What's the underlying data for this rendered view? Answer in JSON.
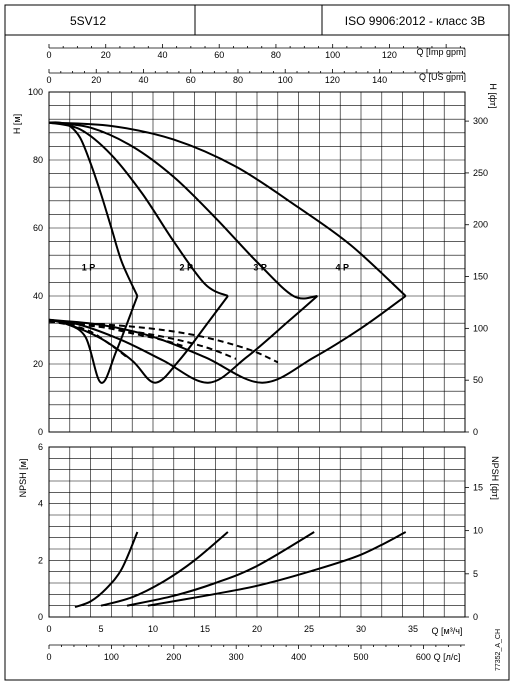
{
  "header": {
    "model": "5SV12",
    "standard": "ISO 9906:2012 - класс 3B"
  },
  "chart_data": [
    {
      "type": "line",
      "name": "head_curves",
      "xlabel_top_imp": "Q [Imp gpm]",
      "xlabel_top_us": "Q [US gpm]",
      "ylabel_left": "H [м]",
      "ylabel_right": "H [фт]",
      "xlim": [
        0,
        40
      ],
      "ylim": [
        0,
        100
      ],
      "x_imp_ticks": [
        0,
        20,
        40,
        60,
        80,
        100,
        120
      ],
      "x_us_ticks": [
        0,
        20,
        40,
        60,
        80,
        100,
        120,
        140
      ],
      "y_ticks": [
        0,
        20,
        40,
        60,
        80,
        100
      ],
      "y_ft_ticks": [
        0,
        50,
        100,
        150,
        200,
        250,
        300
      ],
      "grid": true,
      "series": [
        {
          "name": "1 P",
          "label_at": [
            3.8,
            47.5
          ],
          "head": [
            [
              0,
              91
            ],
            [
              1,
              91
            ],
            [
              2,
              90
            ],
            [
              3,
              86.5
            ],
            [
              4,
              79
            ],
            [
              5,
              70
            ],
            [
              6,
              60
            ],
            [
              7,
              50
            ],
            [
              8.5,
              40
            ]
          ],
          "shape": [
            [
              0,
              33
            ],
            [
              1.5,
              32
            ],
            [
              3.5,
              28
            ],
            [
              5,
              14.5
            ],
            [
              6.5,
              24
            ],
            [
              8.5,
              40
            ]
          ],
          "npsh_q": [
            [
              0,
              32.5
            ],
            [
              2,
              31.5
            ],
            [
              4,
              29.5
            ],
            [
              6,
              25.5
            ],
            [
              7.5,
              22
            ]
          ]
        },
        {
          "name": "2 P",
          "label_at": [
            13.2,
            47.5
          ],
          "head": [
            [
              0,
              91
            ],
            [
              3,
              89
            ],
            [
              6,
              81.5
            ],
            [
              9,
              70
            ],
            [
              12,
              56
            ],
            [
              15,
              43.5
            ],
            [
              17.2,
              40
            ]
          ],
          "shape": [
            [
              0,
              33
            ],
            [
              2,
              31.5
            ],
            [
              5,
              27.5
            ],
            [
              8,
              21
            ],
            [
              10.2,
              14.5
            ],
            [
              12.5,
              21
            ],
            [
              15,
              31
            ],
            [
              17.2,
              40
            ]
          ],
          "npsh_q": [
            [
              0,
              32.5
            ],
            [
              4,
              31.5
            ],
            [
              8,
              29
            ],
            [
              11,
              27
            ],
            [
              13.2,
              25
            ]
          ]
        },
        {
          "name": "3 P",
          "label_at": [
            20.3,
            47.5
          ],
          "head": [
            [
              0,
              91
            ],
            [
              4,
              89.5
            ],
            [
              8,
              84
            ],
            [
              12,
              75
            ],
            [
              16,
              63
            ],
            [
              20,
              50
            ],
            [
              23.5,
              40
            ],
            [
              25.8,
              40
            ]
          ],
          "shape": [
            [
              0,
              33
            ],
            [
              3,
              31.5
            ],
            [
              7,
              27
            ],
            [
              11,
              21
            ],
            [
              15.3,
              14.5
            ],
            [
              19,
              22
            ],
            [
              23,
              32.5
            ],
            [
              25.8,
              40
            ]
          ],
          "npsh_q": [
            [
              0,
              32.5
            ],
            [
              6,
              30.5
            ],
            [
              11,
              28
            ],
            [
              15,
              25
            ],
            [
              18,
              21.5
            ]
          ]
        },
        {
          "name": "4 P",
          "label_at": [
            28.2,
            47.5
          ],
          "head": [
            [
              0,
              91
            ],
            [
              6,
              90
            ],
            [
              12,
              86
            ],
            [
              18,
              78
            ],
            [
              24,
              66
            ],
            [
              29,
              55
            ],
            [
              34.3,
              40
            ]
          ],
          "shape": [
            [
              0,
              33
            ],
            [
              5,
              31.5
            ],
            [
              10,
              28
            ],
            [
              15,
              22
            ],
            [
              20.5,
              14.5
            ],
            [
              25.5,
              22
            ],
            [
              30,
              30.5
            ],
            [
              34.3,
              40
            ]
          ],
          "npsh_q": [
            [
              0,
              32.5
            ],
            [
              8,
              31
            ],
            [
              14,
              28.5
            ],
            [
              19,
              24.5
            ],
            [
              22,
              20.5
            ]
          ]
        }
      ]
    },
    {
      "type": "line",
      "name": "npsh_curves",
      "ylabel_left": "NPSH [м]",
      "ylabel_right": "NPSH [фт]",
      "xlabel_bottom_m3h": "Q [м³/ч]",
      "xlabel_bottom_lmin": "Q [л/с]",
      "xlim": [
        0,
        40
      ],
      "ylim": [
        0,
        6
      ],
      "x_ticks": [
        0,
        5,
        10,
        15,
        20,
        25,
        30,
        35
      ],
      "x_lmin_ticks": [
        0,
        100,
        200,
        300,
        400,
        500,
        600
      ],
      "y_ticks": [
        0,
        2,
        4,
        6
      ],
      "y_ft_ticks": [
        0,
        5,
        10,
        15
      ],
      "grid": true,
      "series": [
        {
          "name": "1 P",
          "points": [
            [
              2.5,
              0.35
            ],
            [
              4,
              0.55
            ],
            [
              5.5,
              1.0
            ],
            [
              7,
              1.7
            ],
            [
              8.5,
              3.0
            ]
          ]
        },
        {
          "name": "2 P",
          "points": [
            [
              5,
              0.4
            ],
            [
              8,
              0.7
            ],
            [
              11,
              1.25
            ],
            [
              14,
              2.0
            ],
            [
              17.2,
              3.0
            ]
          ]
        },
        {
          "name": "3 P",
          "points": [
            [
              7.5,
              0.4
            ],
            [
              12,
              0.75
            ],
            [
              16,
              1.2
            ],
            [
              20,
              1.8
            ],
            [
              25.5,
              3.0
            ]
          ]
        },
        {
          "name": "4 P",
          "points": [
            [
              9.5,
              0.4
            ],
            [
              15,
              0.75
            ],
            [
              20,
              1.1
            ],
            [
              25,
              1.6
            ],
            [
              30,
              2.2
            ],
            [
              34.3,
              3.0
            ]
          ]
        }
      ]
    }
  ],
  "footer": {
    "code": "77352_A_CH"
  }
}
